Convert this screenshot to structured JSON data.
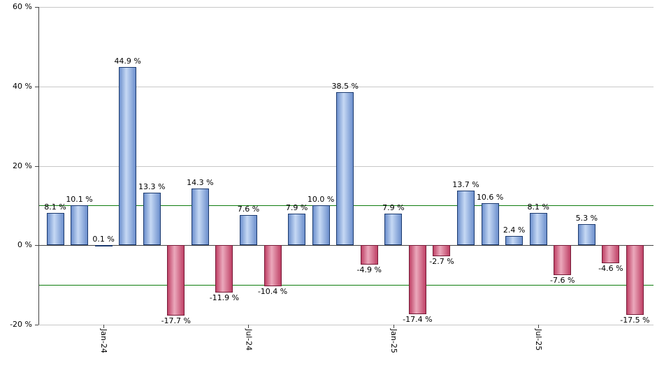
{
  "chart_data": {
    "type": "bar",
    "title": "",
    "xlabel": "",
    "ylabel": "",
    "values": [
      8.1,
      10.1,
      0.1,
      44.9,
      13.3,
      -17.7,
      14.3,
      -11.9,
      7.6,
      -10.4,
      7.9,
      10.0,
      38.5,
      -4.9,
      7.9,
      -17.4,
      -2.7,
      13.7,
      10.6,
      2.4,
      8.1,
      -7.6,
      5.3,
      -4.6,
      -17.5
    ],
    "bar_labels": [
      "8.1 %",
      "10.1 %",
      "0.1 %",
      "44.9 %",
      "13.3 %",
      "-17.7 %",
      "14.3 %",
      "-11.9 %",
      "7.6 %",
      "-10.4 %",
      "7.9 %",
      "10.0 %",
      "38.5 %",
      "-4.9 %",
      "7.9 %",
      "-17.4 %",
      "-2.7 %",
      "13.7 %",
      "10.6 %",
      "2.4 %",
      "8.1 %",
      "-7.6 %",
      "5.3 %",
      "-4.6 %",
      "-17.5 %"
    ],
    "x_ticks": [
      {
        "index": 2,
        "label": "Jan-24"
      },
      {
        "index": 8,
        "label": "Jul-24"
      },
      {
        "index": 14,
        "label": "Jan-25"
      },
      {
        "index": 20,
        "label": "Jul-25"
      }
    ],
    "y_ticks": [
      {
        "value": 60,
        "label": "60 %"
      },
      {
        "value": 40,
        "label": "40 %"
      },
      {
        "value": 20,
        "label": "20 %"
      },
      {
        "value": 0,
        "label": "0 %"
      },
      {
        "value": -20,
        "label": "-20 %"
      }
    ],
    "ylim": [
      -20,
      60
    ],
    "threshold_lines": [
      {
        "value": 10
      },
      {
        "value": -10
      }
    ],
    "grid": true,
    "legend": false,
    "colors": {
      "positive_fill_edge": "#6c8fcd",
      "positive_fill_center": "#c6d9f4",
      "positive_border": "#1c3a6e",
      "negative_fill_edge": "#bf4166",
      "negative_fill_center": "#eba9bc",
      "negative_border": "#771b38",
      "gridline": "#c8c8c8",
      "zero_line": "#444444",
      "axis": "#444444",
      "threshold": "#0f7d0f",
      "label_text": "#000000",
      "background": "#ffffff"
    }
  }
}
